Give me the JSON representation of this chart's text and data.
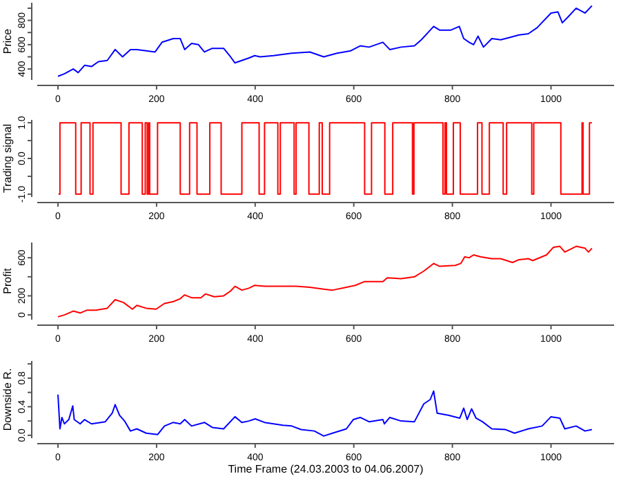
{
  "chart_data": [
    {
      "type": "line",
      "ylabel": "Price",
      "xlim": [
        -42,
        1128
      ],
      "xticks": [
        0,
        200,
        400,
        600,
        800,
        1000
      ],
      "ylim": [
        310,
        945
      ],
      "yticks": [
        400,
        {
          "value": 500,
          "label": null
        },
        600,
        {
          "value": 700,
          "label": null
        },
        800,
        {
          "value": 900,
          "label": null
        }
      ],
      "series": [
        {
          "color": "#0000ff",
          "x": [
            0,
            13,
            31,
            41,
            54,
            68,
            82,
            100,
            116,
            131,
            147,
            160,
            179,
            197,
            211,
            234,
            248,
            257,
            271,
            285,
            297,
            313,
            336,
            350,
            359,
            373,
            387,
            399,
            410,
            437,
            474,
            511,
            539,
            566,
            594,
            613,
            631,
            659,
            673,
            696,
            723,
            737,
            762,
            774,
            797,
            814,
            823,
            834,
            843,
            852,
            863,
            880,
            898,
            917,
            935,
            954,
            972,
            1000,
            1014,
            1023,
            1035,
            1051,
            1069,
            1083
          ],
          "values": [
            340,
            360,
            400,
            370,
            430,
            420,
            460,
            470,
            560,
            500,
            560,
            560,
            550,
            540,
            620,
            650,
            650,
            560,
            610,
            600,
            540,
            570,
            570,
            500,
            450,
            470,
            490,
            510,
            500,
            510,
            530,
            540,
            500,
            530,
            550,
            590,
            580,
            620,
            560,
            580,
            590,
            640,
            750,
            720,
            720,
            750,
            650,
            620,
            600,
            670,
            580,
            650,
            640,
            660,
            680,
            690,
            740,
            860,
            870,
            780,
            830,
            900,
            860,
            920
          ]
        }
      ]
    },
    {
      "type": "step",
      "ylabel": "Trading signal",
      "xlim": [
        -42,
        1128
      ],
      "xticks": [
        0,
        200,
        400,
        600,
        800,
        1000
      ],
      "ylim": [
        -1.08,
        1.08
      ],
      "yticks": [
        {
          "value": -1,
          "label": "-1.0"
        },
        {
          "value": -0.5,
          "label": null
        },
        {
          "value": 0,
          "label": "0.0"
        },
        {
          "value": 0.5,
          "label": null
        },
        {
          "value": 1,
          "label": "1.0"
        }
      ],
      "series": [
        {
          "color": "#ff0000",
          "x": [
            1,
            4,
            36,
            47,
            65,
            71,
            128,
            144,
            171,
            177,
            181,
            184,
            186,
            202,
            248,
            267,
            282,
            308,
            331,
            373,
            408,
            419,
            446,
            451,
            479,
            483,
            509,
            530,
            536,
            551,
            622,
            636,
            663,
            679,
            719,
            722,
            781,
            785,
            788,
            802,
            816,
            851,
            860,
            875,
            903,
            910,
            961,
            965,
            1020,
            1063,
            1065,
            1078,
            1083
          ],
          "values": [
            -1,
            1,
            -1,
            1,
            -1,
            1,
            -1,
            1,
            -1,
            1,
            -1,
            1,
            -1,
            1,
            -1,
            1,
            -1,
            1,
            -1,
            1,
            -1,
            1,
            -1,
            1,
            -1,
            1,
            -1,
            1,
            -1,
            1,
            -1,
            1,
            -1,
            1,
            -1,
            1,
            -1,
            1,
            -1,
            1,
            -1,
            1,
            -1,
            1,
            -1,
            1,
            -1,
            1,
            -1,
            1,
            -1,
            1,
            1
          ]
        }
      ]
    },
    {
      "type": "line",
      "ylabel": "Profit",
      "xlim": [
        -42,
        1128
      ],
      "xticks": [
        0,
        200,
        400,
        600,
        800,
        1000
      ],
      "ylim": [
        -50,
        760
      ],
      "yticks": [
        0,
        200,
        {
          "value": 400,
          "label": null
        },
        600
      ],
      "series": [
        {
          "color": "#ff0000",
          "x": [
            0,
            13,
            31,
            45,
            59,
            77,
            100,
            116,
            133,
            151,
            160,
            179,
            199,
            216,
            234,
            248,
            257,
            271,
            290,
            299,
            317,
            336,
            350,
            359,
            373,
            387,
            399,
            419,
            456,
            483,
            511,
            539,
            557,
            585,
            603,
            622,
            659,
            668,
            696,
            723,
            742,
            762,
            774,
            806,
            817,
            825,
            834,
            843,
            857,
            880,
            898,
            922,
            935,
            954,
            963,
            991,
            1005,
            1018,
            1028,
            1051,
            1069,
            1076,
            1083
          ],
          "values": [
            -20,
            0,
            40,
            20,
            50,
            50,
            70,
            160,
            130,
            60,
            100,
            70,
            60,
            120,
            140,
            170,
            210,
            180,
            180,
            220,
            190,
            200,
            250,
            300,
            260,
            280,
            310,
            300,
            300,
            300,
            290,
            270,
            260,
            290,
            310,
            350,
            350,
            390,
            380,
            400,
            460,
            540,
            510,
            520,
            540,
            610,
            600,
            630,
            610,
            590,
            590,
            550,
            580,
            590,
            570,
            630,
            710,
            720,
            660,
            720,
            700,
            660,
            700
          ]
        }
      ]
    },
    {
      "type": "line",
      "ylabel": "Downside R.",
      "xlabel": "Time Frame (24.03.2003 to 04.06.2007)",
      "xlim": [
        -42,
        1128
      ],
      "xticks": [
        0,
        200,
        400,
        600,
        800,
        1000
      ],
      "ylim": [
        -0.04,
        1.04
      ],
      "yticks": [
        {
          "value": 0,
          "label": "0.0"
        },
        {
          "value": 0.2,
          "label": null
        },
        0.4,
        {
          "value": 0.6,
          "label": null
        },
        0.8,
        {
          "value": 1,
          "label": null
        }
      ],
      "series": [
        {
          "color": "#0000ff",
          "x": [
            0,
            4,
            8,
            13,
            22,
            30,
            33,
            45,
            54,
            68,
            96,
            110,
            116,
            125,
            135,
            147,
            160,
            179,
            202,
            216,
            234,
            248,
            257,
            271,
            297,
            313,
            336,
            359,
            373,
            387,
            400,
            419,
            456,
            474,
            493,
            520,
            539,
            557,
            585,
            599,
            613,
            631,
            659,
            662,
            673,
            696,
            723,
            742,
            755,
            762,
            769,
            792,
            815,
            823,
            830,
            839,
            848,
            861,
            880,
            908,
            926,
            954,
            982,
            1000,
            1018,
            1028,
            1051,
            1069,
            1083
          ],
          "values": [
            0.57,
            0.09,
            0.25,
            0.16,
            0.22,
            0.41,
            0.22,
            0.16,
            0.22,
            0.16,
            0.19,
            0.31,
            0.43,
            0.28,
            0.2,
            0.06,
            0.09,
            0.03,
            0.01,
            0.13,
            0.18,
            0.16,
            0.22,
            0.13,
            0.18,
            0.11,
            0.09,
            0.26,
            0.18,
            0.2,
            0.23,
            0.18,
            0.14,
            0.13,
            0.08,
            0.06,
            -0.01,
            0.03,
            0.09,
            0.22,
            0.25,
            0.19,
            0.22,
            0.16,
            0.25,
            0.2,
            0.19,
            0.44,
            0.5,
            0.62,
            0.31,
            0.28,
            0.24,
            0.38,
            0.22,
            0.37,
            0.24,
            0.19,
            0.09,
            0.08,
            0.03,
            0.09,
            0.13,
            0.26,
            0.24,
            0.09,
            0.13,
            0.06,
            0.08
          ]
        }
      ]
    }
  ]
}
